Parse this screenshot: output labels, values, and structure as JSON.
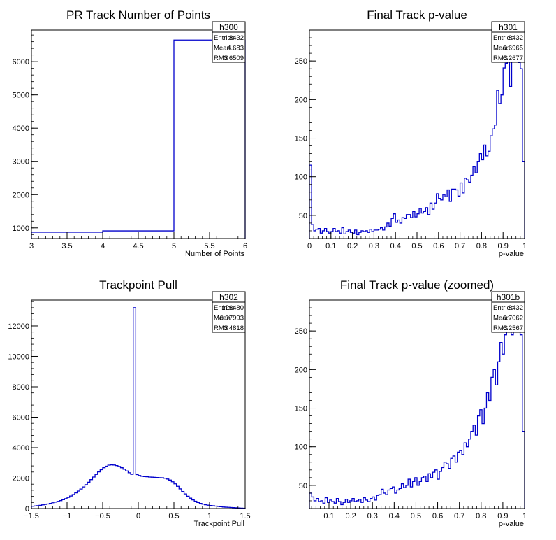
{
  "chart_data": [
    {
      "name": "h300",
      "type": "histogram",
      "title": "PR Track Number of Points",
      "xlabel": "Number of Points",
      "ylabel": "",
      "xlim": [
        3,
        6
      ],
      "ylim": [
        680,
        6950
      ],
      "xticks": [
        "3",
        "3.5",
        "4",
        "4.5",
        "5",
        "5.5",
        "6"
      ],
      "yticks": [
        "1000",
        "2000",
        "3000",
        "4000",
        "5000",
        "6000"
      ],
      "bin_edges": [
        3,
        4,
        5,
        6
      ],
      "values": [
        870,
        910,
        6650
      ],
      "stats": {
        "entries_label": "Entries",
        "entries": "8432",
        "mean_label": "Mean",
        "mean": "4.683",
        "rms_label": "RMS",
        "rms": "0.6509"
      }
    },
    {
      "name": "h301",
      "type": "histogram",
      "title": "Final Track p-value",
      "xlabel": "p-value",
      "ylabel": "",
      "xlim": [
        0,
        1
      ],
      "ylim": [
        20,
        290
      ],
      "xticks": [
        "0",
        "0.1",
        "0.2",
        "0.3",
        "0.4",
        "0.5",
        "0.6",
        "0.7",
        "0.8",
        "0.9",
        "1"
      ],
      "yticks": [
        "50",
        "100",
        "150",
        "200",
        "250"
      ],
      "bin_edges_range": [
        0,
        1
      ],
      "values": [
        115,
        38,
        30,
        32,
        33,
        27,
        30,
        33,
        29,
        27,
        29,
        33,
        29,
        30,
        27,
        34,
        26,
        29,
        31,
        28,
        27,
        31,
        25,
        28,
        30,
        29,
        30,
        28,
        32,
        29,
        31,
        31,
        32,
        34,
        31,
        35,
        40,
        36,
        46,
        52,
        41,
        44,
        40,
        47,
        46,
        51,
        51,
        47,
        55,
        48,
        52,
        59,
        53,
        55,
        60,
        51,
        66,
        58,
        66,
        78,
        72,
        70,
        77,
        74,
        83,
        68,
        84,
        84,
        83,
        75,
        92,
        79,
        98,
        96,
        93,
        102,
        113,
        105,
        120,
        130,
        122,
        141,
        127,
        133,
        153,
        162,
        167,
        212,
        195,
        206,
        241,
        247,
        250,
        217,
        300,
        270,
        310,
        248,
        240,
        120
      ],
      "stats": {
        "entries_label": "Entries",
        "entries": "8432",
        "mean_label": "Mean",
        "mean": "0.6965",
        "rms_label": "RMS",
        "rms": "0.2677"
      }
    },
    {
      "name": "h302",
      "type": "histogram",
      "title": "Trackpoint Pull",
      "xlabel": "Trackpoint Pull",
      "ylabel": "",
      "xlim": [
        -1.5,
        1.5
      ],
      "ylim": [
        0,
        13700
      ],
      "xticks": [
        "−1.5",
        "−1",
        "−0.5",
        "0",
        "0.5",
        "1",
        "1.5"
      ],
      "yticks": [
        "0",
        "2000",
        "4000",
        "6000",
        "8000",
        "10000",
        "12000"
      ],
      "bin_edges_range": [
        -1.5,
        1.5
      ],
      "values": [
        150,
        170,
        190,
        210,
        240,
        270,
        300,
        340,
        380,
        420,
        470,
        520,
        580,
        650,
        730,
        820,
        920,
        1030,
        1150,
        1280,
        1420,
        1570,
        1730,
        1900,
        2070,
        2240,
        2410,
        2550,
        2680,
        2780,
        2850,
        2870,
        2860,
        2820,
        2760,
        2680,
        2580,
        2470,
        2350,
        2250,
        13200,
        2230,
        2170,
        2120,
        2100,
        2090,
        2070,
        2060,
        2050,
        2040,
        2030,
        2020,
        1990,
        1940,
        1870,
        1760,
        1620,
        1460,
        1290,
        1120,
        960,
        810,
        680,
        570,
        480,
        400,
        340,
        290,
        250,
        220,
        200,
        180,
        160,
        140,
        120,
        100,
        90,
        80,
        70,
        60,
        50,
        40,
        30,
        20
      ],
      "stats": {
        "entries_label": "Entries",
        "entries": "126480",
        "mean_label": "Mean",
        "mean": "−0.07993",
        "rms_label": "RMS",
        "rms": "0.4818"
      }
    },
    {
      "name": "h301b",
      "type": "histogram",
      "title": "Final Track p-value (zoomed)",
      "xlabel": "p-value",
      "ylabel": "",
      "xlim": [
        0.01,
        1
      ],
      "ylim": [
        20,
        290
      ],
      "xticks": [
        "0.1",
        "0.2",
        "0.3",
        "0.4",
        "0.5",
        "0.6",
        "0.7",
        "0.8",
        "0.9",
        "1"
      ],
      "yticks": [
        "50",
        "100",
        "150",
        "200",
        "250"
      ],
      "bin_edges_range": [
        0.01,
        1
      ],
      "values": [
        40,
        35,
        30,
        33,
        29,
        30,
        27,
        34,
        28,
        31,
        29,
        27,
        33,
        29,
        25,
        28,
        32,
        28,
        30,
        33,
        29,
        30,
        32,
        28,
        34,
        31,
        29,
        33,
        35,
        31,
        37,
        38,
        45,
        40,
        38,
        44,
        46,
        48,
        40,
        44,
        46,
        52,
        47,
        50,
        58,
        48,
        55,
        60,
        50,
        55,
        60,
        62,
        55,
        65,
        60,
        67,
        70,
        58,
        68,
        73,
        80,
        78,
        72,
        85,
        88,
        80,
        93,
        95,
        90,
        105,
        100,
        110,
        120,
        128,
        115,
        140,
        148,
        130,
        150,
        170,
        160,
        190,
        200,
        180,
        210,
        235,
        220,
        245,
        280,
        255,
        245,
        250,
        300,
        260,
        245,
        120
      ],
      "stats": {
        "entries_label": "Entries",
        "entries": "8432",
        "mean_label": "Mean",
        "mean": "0.7062",
        "rms_label": "RMS",
        "rms": "0.2567"
      }
    }
  ],
  "colors": {
    "line": "#0000cc",
    "frame": "#000000",
    "background": "#ffffff"
  }
}
